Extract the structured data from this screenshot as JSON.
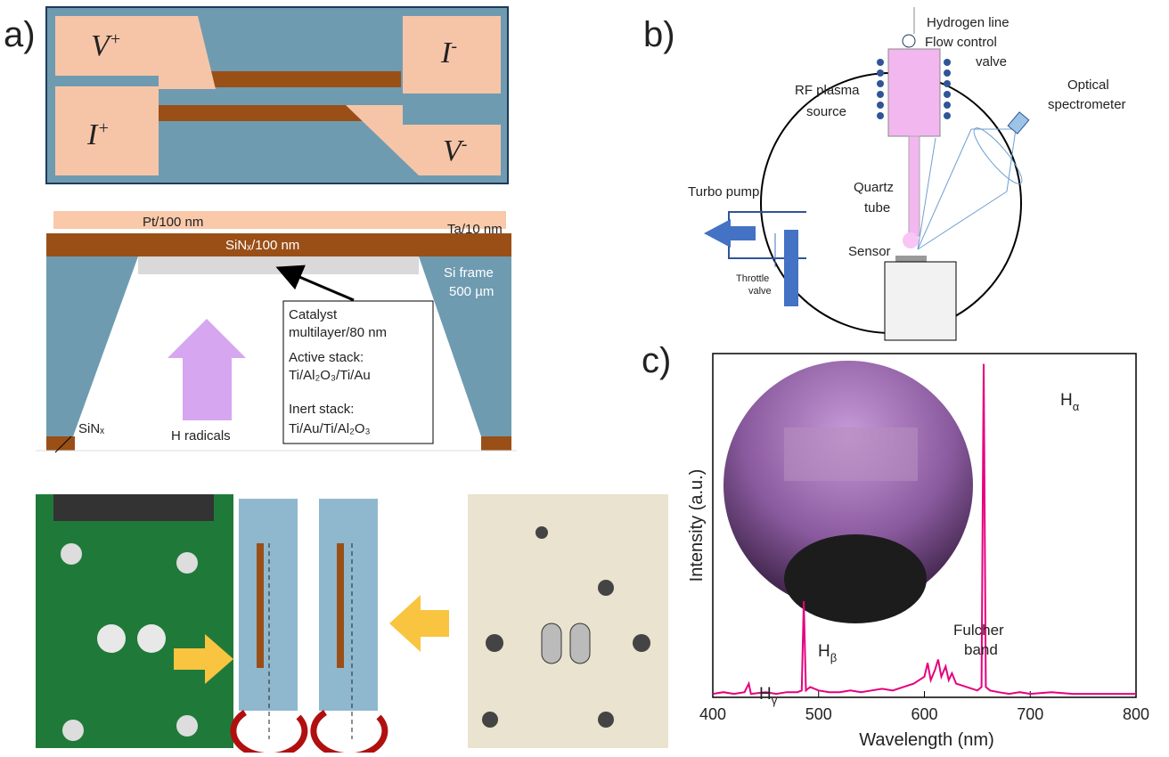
{
  "panel_a": {
    "label": "a)",
    "pads": [
      {
        "main": "V",
        "sup": "+"
      },
      {
        "main": "I",
        "sup": "-"
      },
      {
        "main": "I",
        "sup": "+"
      },
      {
        "main": "V",
        "sup": "-"
      }
    ],
    "layers": {
      "pt": "Pt/100 nm",
      "ta": "Ta/10 nm",
      "sinx": "SiNₓ/100 nm",
      "frame": "Si frame",
      "frame_thickness": "500 µm",
      "sinx_bottom": "SiNₓ"
    },
    "callout": [
      "Catalyst",
      "multilayer/80 nm",
      "Active stack:",
      "Ti/Al₂O₃/Ti/Au",
      "Inert stack:",
      "Ti/Au/Ti/Al₂O₃"
    ],
    "arrow_label": "H radicals"
  },
  "panel_b": {
    "label": "b)",
    "hydrogen_line": "Hydrogen line",
    "flow_control": [
      "Flow control",
      "valve"
    ],
    "rf_source": [
      "RF plasma",
      "source"
    ],
    "spectrometer": [
      "Optical",
      "spectrometer"
    ],
    "turbo_pump": "Turbo pump",
    "quartz_tube": [
      "Quartz",
      "tube"
    ],
    "sensor": "Sensor",
    "throttle_valve": [
      "Throttle",
      "valve"
    ]
  },
  "chart_data": {
    "type": "line",
    "label": "c)",
    "xlabel": "Wavelength (nm)",
    "ylabel": "Intensity (a.u.)",
    "color": "#e6007e",
    "xlim": [
      400,
      800
    ],
    "xticks": [
      400,
      500,
      600,
      700,
      800
    ],
    "ylim": [
      0,
      100
    ],
    "x": [
      400,
      410,
      420,
      430,
      434,
      436,
      450,
      460,
      470,
      480,
      484,
      486,
      488,
      492,
      500,
      510,
      520,
      530,
      540,
      550,
      560,
      570,
      580,
      590,
      600,
      603,
      606,
      610,
      613,
      616,
      620,
      623,
      626,
      630,
      640,
      650,
      654,
      656,
      658,
      662,
      670,
      680,
      690,
      700,
      720,
      740,
      760,
      780,
      800
    ],
    "values": [
      1,
      1.5,
      1,
      1.5,
      4,
      1,
      1.5,
      1,
      1.5,
      1.5,
      2,
      28,
      2,
      3,
      2,
      1.5,
      1.5,
      2,
      1.5,
      2,
      2.5,
      2,
      3,
      4,
      6,
      10,
      5,
      8,
      11,
      6,
      9,
      5,
      7,
      4,
      3,
      2,
      3,
      97,
      3,
      2,
      1.5,
      1,
      1.5,
      1,
      1.5,
      1,
      1,
      1,
      1
    ],
    "annotations": [
      {
        "text": "H",
        "sub": "α"
      },
      {
        "text": "H",
        "sub": "β"
      },
      {
        "text": "H",
        "sub": "γ"
      },
      {
        "lines": [
          "Fulcher",
          "band"
        ]
      }
    ]
  }
}
